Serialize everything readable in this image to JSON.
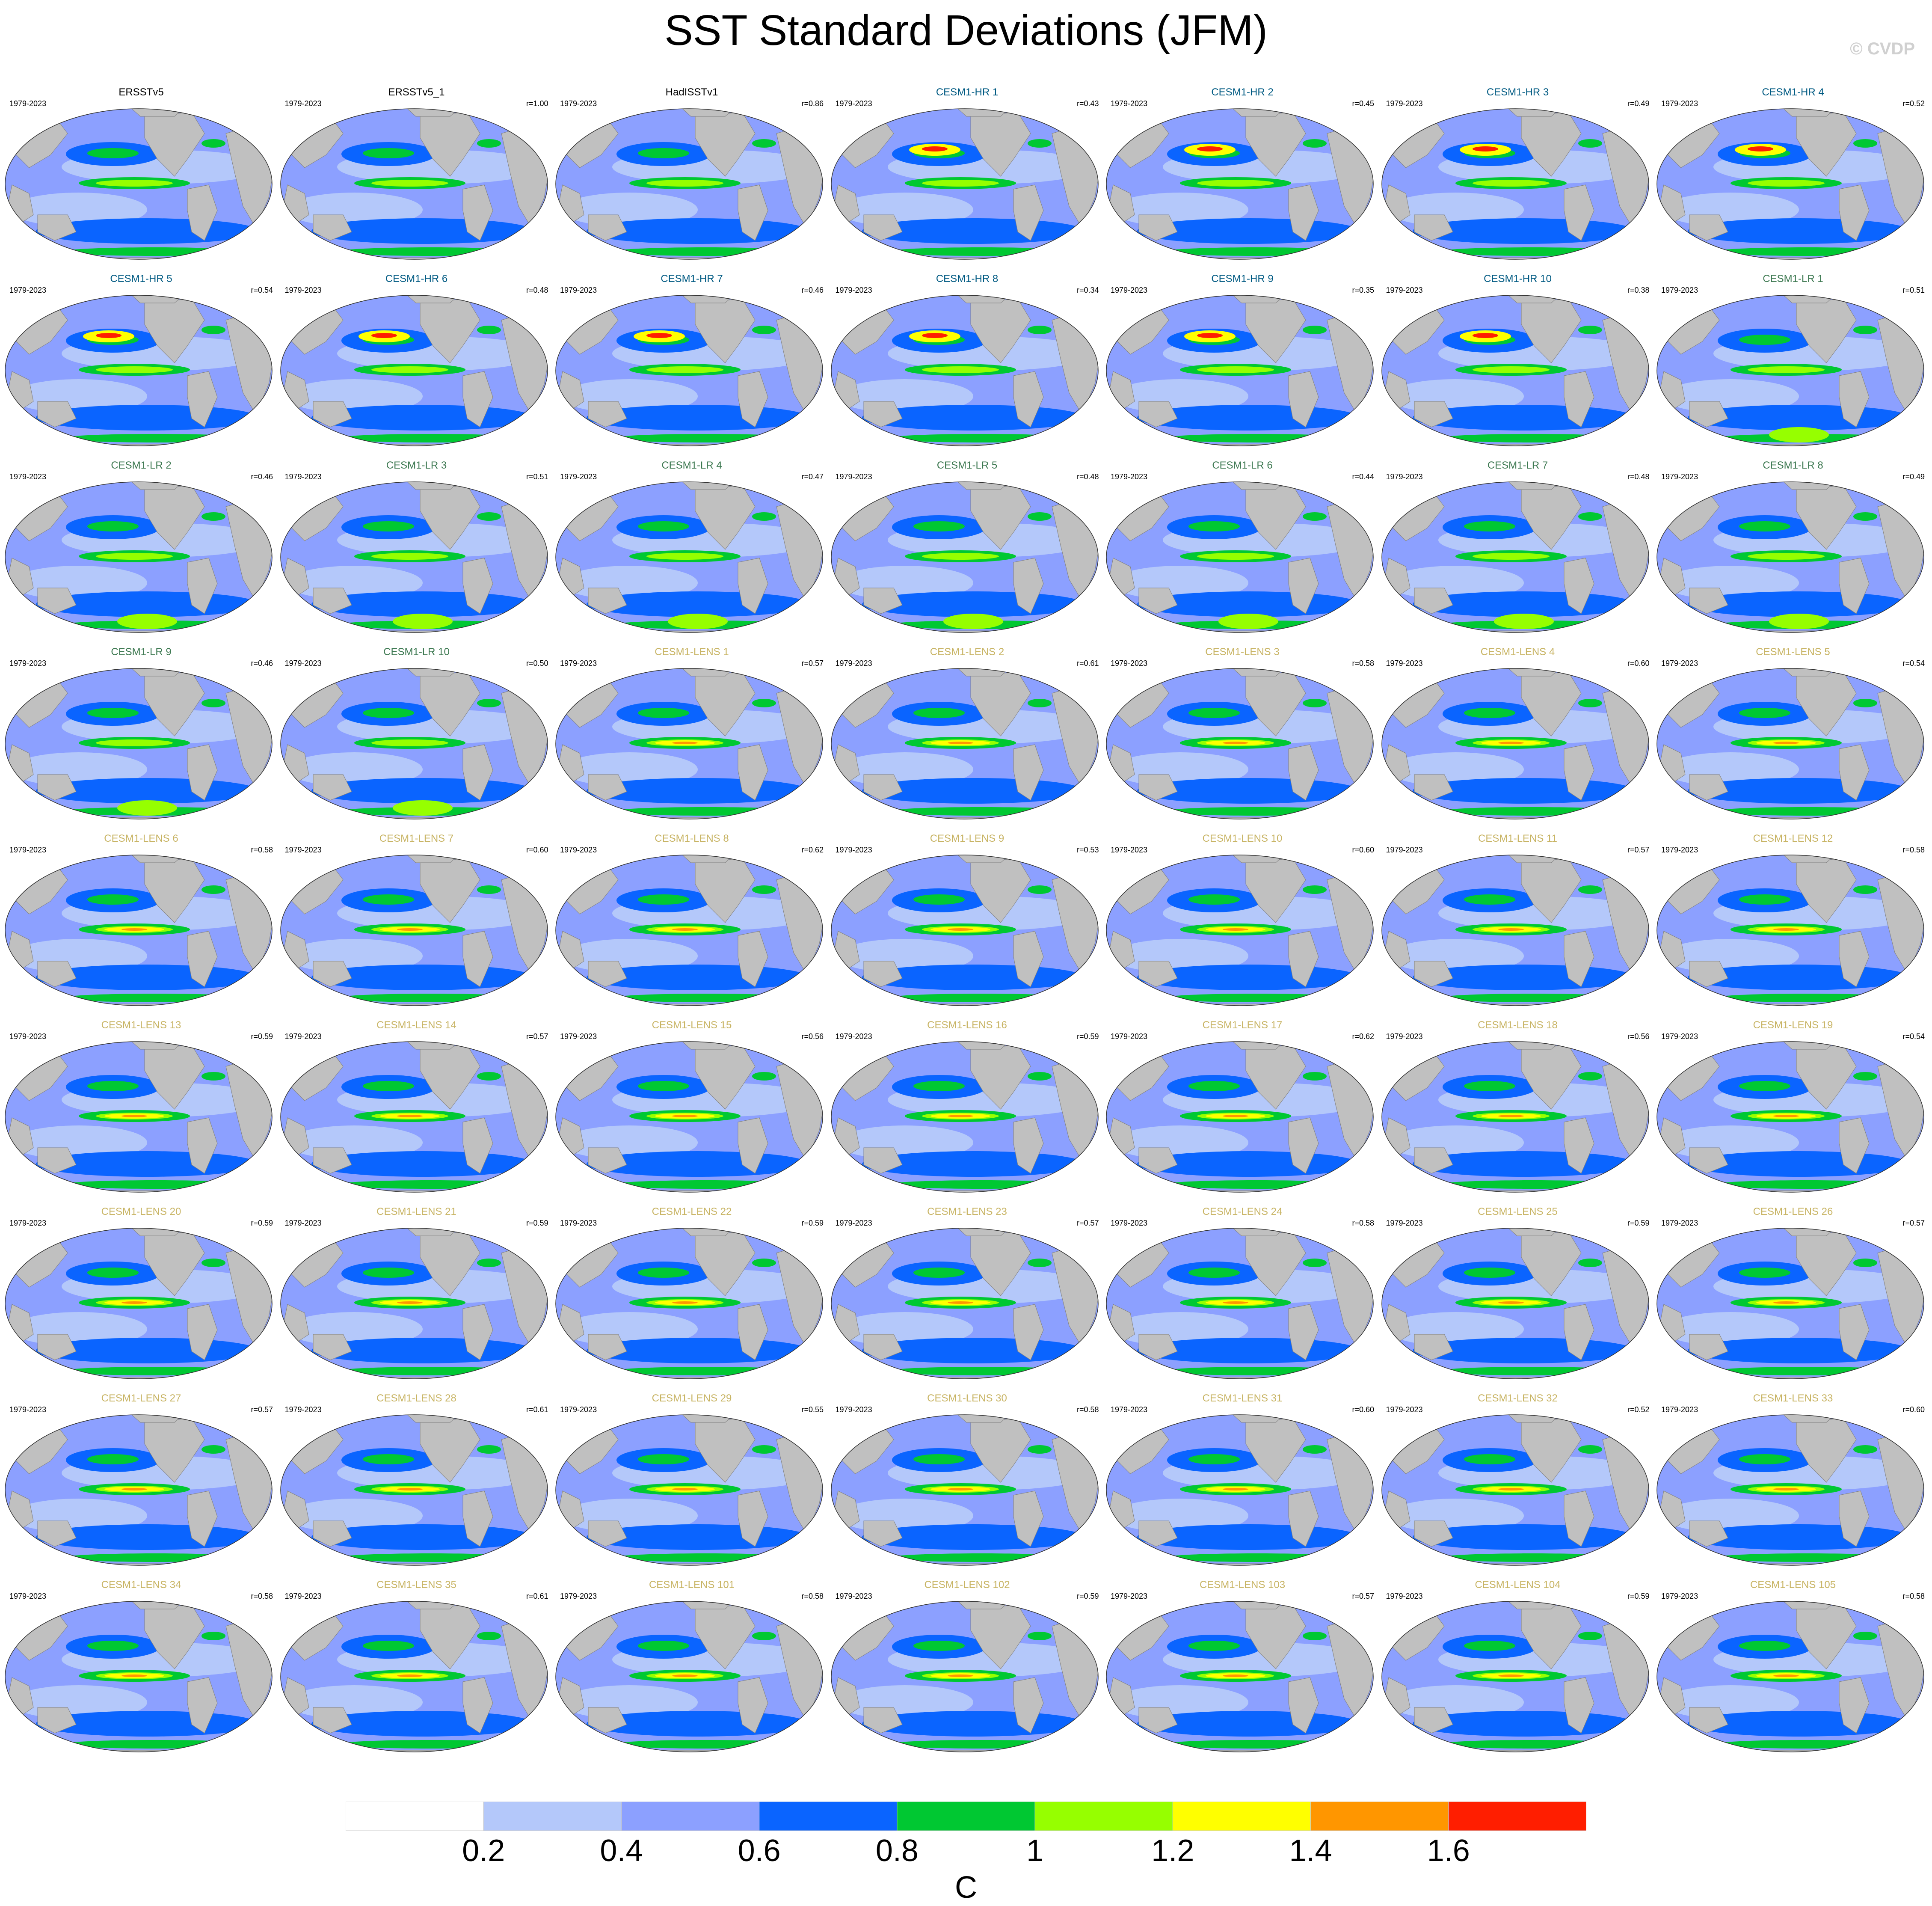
{
  "title": "SST Standard Deviations (JFM)",
  "credit": "© CVDP",
  "units": "C",
  "colorbar": {
    "colors": [
      "#ffffff",
      "#b4c8fa",
      "#8ca0ff",
      "#0a64ff",
      "#00c832",
      "#96ff00",
      "#ffff00",
      "#ff9600",
      "#ff1e00"
    ],
    "labels": [
      "0.2",
      "0.4",
      "0.6",
      "0.8",
      "1",
      "1.2",
      "1.4",
      "1.6"
    ]
  },
  "colors": {
    "land": "#c0c0c0",
    "obs_title": "#000000",
    "hr_title": "#005a82",
    "lr_title": "#3c7850",
    "lens_title": "#c8b464"
  },
  "panels": [
    {
      "name": "ERSSTv5",
      "years": "1979-2023",
      "r": "",
      "group": "obs"
    },
    {
      "name": "ERSSTv5_1",
      "years": "1979-2023",
      "r": "r=1.00",
      "group": "obs"
    },
    {
      "name": "HadISSTv1",
      "years": "1979-2023",
      "r": "r=0.86",
      "group": "obs"
    },
    {
      "name": "CESM1-HR 1",
      "years": "1979-2023",
      "r": "r=0.43",
      "group": "hr"
    },
    {
      "name": "CESM1-HR 2",
      "years": "1979-2023",
      "r": "r=0.45",
      "group": "hr"
    },
    {
      "name": "CESM1-HR 3",
      "years": "1979-2023",
      "r": "r=0.49",
      "group": "hr"
    },
    {
      "name": "CESM1-HR 4",
      "years": "1979-2023",
      "r": "r=0.52",
      "group": "hr"
    },
    {
      "name": "CESM1-HR 5",
      "years": "1979-2023",
      "r": "r=0.54",
      "group": "hr"
    },
    {
      "name": "CESM1-HR 6",
      "years": "1979-2023",
      "r": "r=0.48",
      "group": "hr"
    },
    {
      "name": "CESM1-HR 7",
      "years": "1979-2023",
      "r": "r=0.46",
      "group": "hr"
    },
    {
      "name": "CESM1-HR 8",
      "years": "1979-2023",
      "r": "r=0.34",
      "group": "hr"
    },
    {
      "name": "CESM1-HR 9",
      "years": "1979-2023",
      "r": "r=0.35",
      "group": "hr"
    },
    {
      "name": "CESM1-HR 10",
      "years": "1979-2023",
      "r": "r=0.38",
      "group": "hr"
    },
    {
      "name": "CESM1-LR 1",
      "years": "1979-2023",
      "r": "r=0.51",
      "group": "lr"
    },
    {
      "name": "CESM1-LR 2",
      "years": "1979-2023",
      "r": "r=0.46",
      "group": "lr"
    },
    {
      "name": "CESM1-LR 3",
      "years": "1979-2023",
      "r": "r=0.51",
      "group": "lr"
    },
    {
      "name": "CESM1-LR 4",
      "years": "1979-2023",
      "r": "r=0.47",
      "group": "lr"
    },
    {
      "name": "CESM1-LR 5",
      "years": "1979-2023",
      "r": "r=0.48",
      "group": "lr"
    },
    {
      "name": "CESM1-LR 6",
      "years": "1979-2023",
      "r": "r=0.44",
      "group": "lr"
    },
    {
      "name": "CESM1-LR 7",
      "years": "1979-2023",
      "r": "r=0.48",
      "group": "lr"
    },
    {
      "name": "CESM1-LR 8",
      "years": "1979-2023",
      "r": "r=0.49",
      "group": "lr"
    },
    {
      "name": "CESM1-LR 9",
      "years": "1979-2023",
      "r": "r=0.46",
      "group": "lr"
    },
    {
      "name": "CESM1-LR 10",
      "years": "1979-2023",
      "r": "r=0.50",
      "group": "lr"
    },
    {
      "name": "CESM1-LENS 1",
      "years": "1979-2023",
      "r": "r=0.57",
      "group": "lens"
    },
    {
      "name": "CESM1-LENS 2",
      "years": "1979-2023",
      "r": "r=0.61",
      "group": "lens"
    },
    {
      "name": "CESM1-LENS 3",
      "years": "1979-2023",
      "r": "r=0.58",
      "group": "lens"
    },
    {
      "name": "CESM1-LENS 4",
      "years": "1979-2023",
      "r": "r=0.60",
      "group": "lens"
    },
    {
      "name": "CESM1-LENS 5",
      "years": "1979-2023",
      "r": "r=0.54",
      "group": "lens"
    },
    {
      "name": "CESM1-LENS 6",
      "years": "1979-2023",
      "r": "r=0.58",
      "group": "lens"
    },
    {
      "name": "CESM1-LENS 7",
      "years": "1979-2023",
      "r": "r=0.60",
      "group": "lens"
    },
    {
      "name": "CESM1-LENS 8",
      "years": "1979-2023",
      "r": "r=0.62",
      "group": "lens"
    },
    {
      "name": "CESM1-LENS 9",
      "years": "1979-2023",
      "r": "r=0.53",
      "group": "lens"
    },
    {
      "name": "CESM1-LENS 10",
      "years": "1979-2023",
      "r": "r=0.60",
      "group": "lens"
    },
    {
      "name": "CESM1-LENS 11",
      "years": "1979-2023",
      "r": "r=0.57",
      "group": "lens"
    },
    {
      "name": "CESM1-LENS 12",
      "years": "1979-2023",
      "r": "r=0.58",
      "group": "lens"
    },
    {
      "name": "CESM1-LENS 13",
      "years": "1979-2023",
      "r": "r=0.59",
      "group": "lens"
    },
    {
      "name": "CESM1-LENS 14",
      "years": "1979-2023",
      "r": "r=0.57",
      "group": "lens"
    },
    {
      "name": "CESM1-LENS 15",
      "years": "1979-2023",
      "r": "r=0.56",
      "group": "lens"
    },
    {
      "name": "CESM1-LENS 16",
      "years": "1979-2023",
      "r": "r=0.59",
      "group": "lens"
    },
    {
      "name": "CESM1-LENS 17",
      "years": "1979-2023",
      "r": "r=0.62",
      "group": "lens"
    },
    {
      "name": "CESM1-LENS 18",
      "years": "1979-2023",
      "r": "r=0.56",
      "group": "lens"
    },
    {
      "name": "CESM1-LENS 19",
      "years": "1979-2023",
      "r": "r=0.54",
      "group": "lens"
    },
    {
      "name": "CESM1-LENS 20",
      "years": "1979-2023",
      "r": "r=0.59",
      "group": "lens"
    },
    {
      "name": "CESM1-LENS 21",
      "years": "1979-2023",
      "r": "r=0.59",
      "group": "lens"
    },
    {
      "name": "CESM1-LENS 22",
      "years": "1979-2023",
      "r": "r=0.59",
      "group": "lens"
    },
    {
      "name": "CESM1-LENS 23",
      "years": "1979-2023",
      "r": "r=0.57",
      "group": "lens"
    },
    {
      "name": "CESM1-LENS 24",
      "years": "1979-2023",
      "r": "r=0.58",
      "group": "lens"
    },
    {
      "name": "CESM1-LENS 25",
      "years": "1979-2023",
      "r": "r=0.59",
      "group": "lens"
    },
    {
      "name": "CESM1-LENS 26",
      "years": "1979-2023",
      "r": "r=0.57",
      "group": "lens"
    },
    {
      "name": "CESM1-LENS 27",
      "years": "1979-2023",
      "r": "r=0.57",
      "group": "lens"
    },
    {
      "name": "CESM1-LENS 28",
      "years": "1979-2023",
      "r": "r=0.61",
      "group": "lens"
    },
    {
      "name": "CESM1-LENS 29",
      "years": "1979-2023",
      "r": "r=0.55",
      "group": "lens"
    },
    {
      "name": "CESM1-LENS 30",
      "years": "1979-2023",
      "r": "r=0.58",
      "group": "lens"
    },
    {
      "name": "CESM1-LENS 31",
      "years": "1979-2023",
      "r": "r=0.60",
      "group": "lens"
    },
    {
      "name": "CESM1-LENS 32",
      "years": "1979-2023",
      "r": "r=0.52",
      "group": "lens"
    },
    {
      "name": "CESM1-LENS 33",
      "years": "1979-2023",
      "r": "r=0.60",
      "group": "lens"
    },
    {
      "name": "CESM1-LENS 34",
      "years": "1979-2023",
      "r": "r=0.58",
      "group": "lens"
    },
    {
      "name": "CESM1-LENS 35",
      "years": "1979-2023",
      "r": "r=0.61",
      "group": "lens"
    },
    {
      "name": "CESM1-LENS 101",
      "years": "1979-2023",
      "r": "r=0.58",
      "group": "lens"
    },
    {
      "name": "CESM1-LENS 102",
      "years": "1979-2023",
      "r": "r=0.59",
      "group": "lens"
    },
    {
      "name": "CESM1-LENS 103",
      "years": "1979-2023",
      "r": "r=0.57",
      "group": "lens"
    },
    {
      "name": "CESM1-LENS 104",
      "years": "1979-2023",
      "r": "r=0.59",
      "group": "lens"
    },
    {
      "name": "CESM1-LENS 105",
      "years": "1979-2023",
      "r": "r=0.58",
      "group": "lens"
    }
  ]
}
